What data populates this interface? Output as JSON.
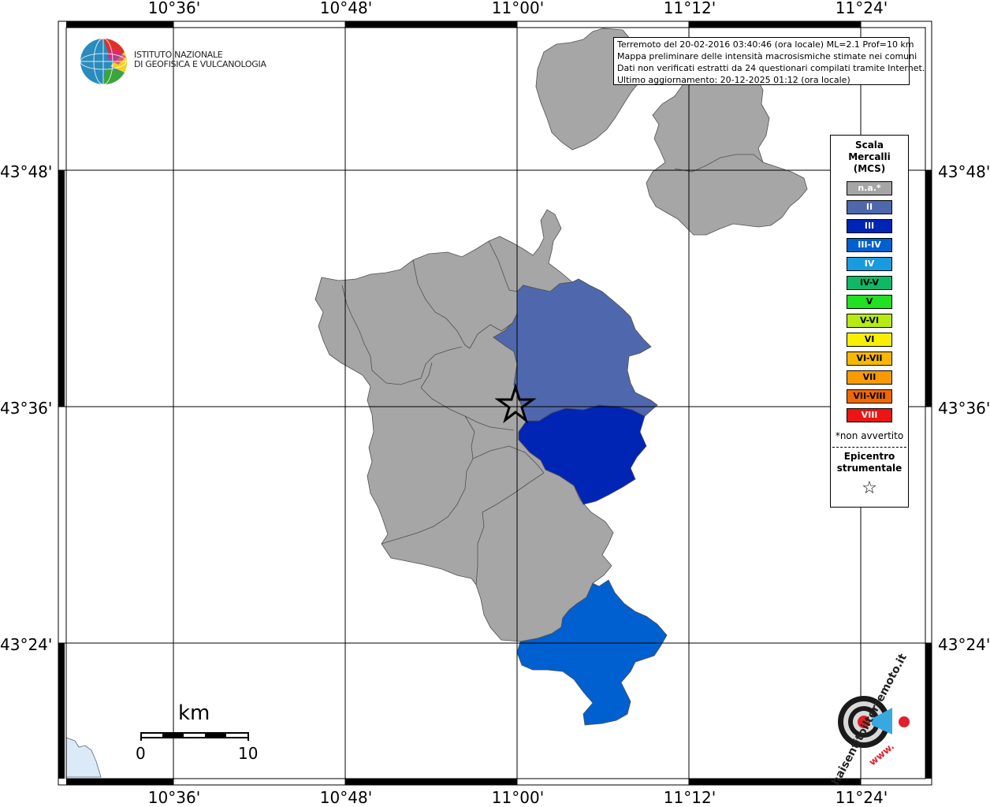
{
  "map": {
    "lon_ticks": [
      "10°36'",
      "10°48'",
      "11°00'",
      "11°12'",
      "11°24'"
    ],
    "lat_ticks": [
      "43°48'",
      "43°36'",
      "43°24'"
    ]
  },
  "info_box": {
    "lines": [
      "Terremoto del 20-02-2016 03:40:46 (ora locale) ML=2.1 Prof=10 km",
      "Mappa preliminare delle intensità macrosismiche stimate nei comuni",
      "Dati non verificati estratti da 24 questionari compilati tramite Internet.",
      "Ultimo aggiornamento: 20-12-2025 01:12 (ora locale)"
    ]
  },
  "logo": {
    "line1": "ISTITUTO NAZIONALE",
    "line2": "DI GEOFISICA E VULCANOLOGIA"
  },
  "legend": {
    "title": [
      "Scala",
      "Mercalli",
      "(MCS)"
    ],
    "items": [
      {
        "label": "n.a.*",
        "color": "#a6a6a6"
      },
      {
        "label": "II",
        "color": "#4f67ad"
      },
      {
        "label": "III",
        "color": "#0025b5"
      },
      {
        "label": "III-IV",
        "color": "#0060cf"
      },
      {
        "label": "IV",
        "color": "#1a9be0"
      },
      {
        "label": "IV-V",
        "color": "#10b866"
      },
      {
        "label": "V",
        "color": "#22e022"
      },
      {
        "label": "V-VI",
        "color": "#b6ea12"
      },
      {
        "label": "VI",
        "color": "#f8f000"
      },
      {
        "label": "VI-VII",
        "color": "#f8b800"
      },
      {
        "label": "VII",
        "color": "#f89a00"
      },
      {
        "label": "VII-VIII",
        "color": "#f06800"
      },
      {
        "label": "VIII",
        "color": "#ee1414"
      }
    ],
    "not_felt": "*non avvertito",
    "epicenter_title": [
      "Epicentro",
      "strumentale"
    ],
    "epicenter_symbol": "☆"
  },
  "scale_bar": {
    "unit": "km",
    "start": "0",
    "end": "10"
  },
  "hsit": {
    "brand": "haisentitoilterremoto.it",
    "url": "www."
  }
}
